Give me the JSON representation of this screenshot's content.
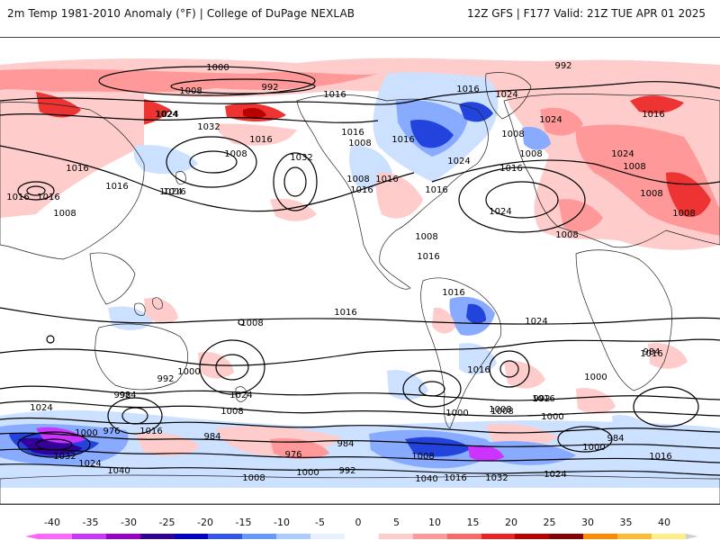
{
  "header": {
    "title_left": "2m Temp 1981-2010 Anomaly (°F) | College of DuPage NEXLAB",
    "title_right": "12Z GFS | F177 Valid: 21Z TUE APR 01 2025"
  },
  "colorbar": {
    "labels": [
      "-40",
      "-35",
      "-30",
      "-25",
      "-20",
      "-15",
      "-10",
      "-5",
      "0",
      "5",
      "10",
      "15",
      "20",
      "25",
      "30",
      "35",
      "40"
    ],
    "colors": [
      "#ff66ff",
      "#cc33ff",
      "#9900cc",
      "#330099",
      "#0000cc",
      "#3355ee",
      "#6699ff",
      "#aaccff",
      "#e6f0ff",
      "#ffffff",
      "#ffcccc",
      "#ff9999",
      "#ff6666",
      "#ee2222",
      "#bb0000",
      "#880000",
      "#ff8800",
      "#ffbb33",
      "#ffee88",
      "#d0d0d0"
    ]
  },
  "map": {
    "contour_labels": [
      "1000",
      "992",
      "1008",
      "1016",
      "1024",
      "1032",
      "1016",
      "1008",
      "1024",
      "1016",
      "1016",
      "1024",
      "1032",
      "1016",
      "1008",
      "1016",
      "1024",
      "1016",
      "1008",
      "1016",
      "1016",
      "1008",
      "1024",
      "1008",
      "992",
      "1016",
      "1024",
      "1016",
      "1024",
      "1008",
      "1008",
      "1008",
      "1008",
      "1008",
      "1016",
      "1016",
      "1016",
      "1016",
      "1008",
      "1016",
      "1016",
      "1024",
      "1024",
      "1000",
      "992",
      "1008",
      "984",
      "992",
      "976",
      "1016",
      "1000",
      "1032",
      "1024",
      "984",
      "976",
      "984",
      "992",
      "1000",
      "1016",
      "1016",
      "1000",
      "984",
      "1008",
      "1024",
      "1040",
      "1016",
      "1008",
      "1000",
      "992",
      "1040",
      "1032",
      "1024",
      "1016",
      "1000",
      "1008",
      "1016",
      "984",
      "1024",
      "1016",
      "1008",
      "1000",
      "1008"
    ],
    "anomaly_colors": {
      "warm_light": "#ffcccc",
      "warm_mid": "#ff9999",
      "warm_strong": "#ee3333",
      "warm_extreme": "#bb0000",
      "cool_light": "#cce0ff",
      "cool_mid": "#88aaff",
      "cool_strong": "#2244dd",
      "cold_extreme": "#330099",
      "cold_magenta": "#cc33ff"
    }
  }
}
